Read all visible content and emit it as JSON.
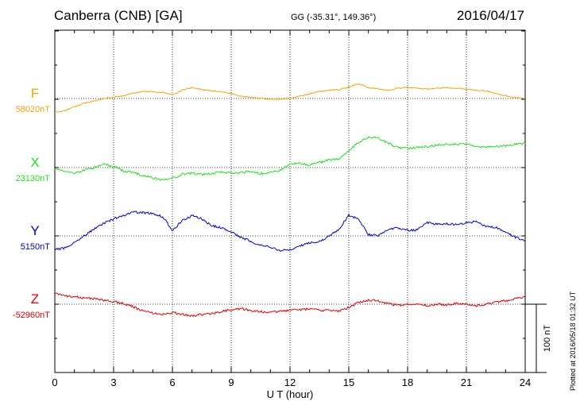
{
  "header": {
    "station": "Canberra (CNB)  [GA]",
    "coords": "GG (-35.31°, 149.36°)",
    "date": "2016/04/17"
  },
  "footnote": "Plotted at 2016/05/18 01:32 UT",
  "colors": {
    "F": "#f4a300",
    "X": "#1ee01e",
    "Y": "#0000cc",
    "Z": "#dd0000"
  },
  "chart_data": {
    "type": "line",
    "xlabel": "U T (hour)",
    "x_ticks": [
      0,
      3,
      6,
      9,
      12,
      15,
      18,
      21,
      24
    ],
    "xlim": [
      0,
      24
    ],
    "scale_bar_label": "100 nT",
    "scale_bar_nT": 100,
    "grid": true,
    "series": [
      {
        "name": "F",
        "baseline_label": "58020nT",
        "baseline_nT": 58020,
        "hours": [
          0,
          0.5,
          1,
          1.5,
          2,
          2.5,
          3,
          3.5,
          4,
          4.5,
          5,
          5.5,
          6,
          6.5,
          7,
          7.5,
          8,
          8.5,
          9,
          9.5,
          10,
          10.5,
          11,
          11.5,
          12,
          12.5,
          13,
          13.5,
          14,
          14.5,
          15,
          15.5,
          16,
          16.5,
          17,
          17.5,
          18,
          18.5,
          19,
          19.5,
          20,
          20.5,
          21,
          21.5,
          22,
          22.5,
          23,
          23.5,
          24
        ],
        "values": [
          -20,
          -18,
          -12,
          -7,
          -4,
          0,
          2,
          4,
          8,
          10,
          10,
          9,
          5,
          12,
          16,
          13,
          11,
          10,
          7,
          3,
          2,
          0,
          -1,
          -1,
          0,
          3,
          7,
          10,
          12,
          13,
          17,
          22,
          16,
          14,
          12,
          15,
          16,
          15,
          14,
          15,
          16,
          15,
          14,
          12,
          11,
          7,
          4,
          1,
          0
        ]
      },
      {
        "name": "X",
        "baseline_label": "23130nT",
        "baseline_nT": 23130,
        "hours": [
          0,
          0.5,
          1,
          1.5,
          2,
          2.5,
          3,
          3.5,
          4,
          4.5,
          5,
          5.5,
          6,
          6.5,
          7,
          7.5,
          8,
          8.5,
          9,
          9.5,
          10,
          10.5,
          11,
          11.5,
          12,
          12.5,
          13,
          13.5,
          14,
          14.5,
          15,
          15.5,
          16,
          16.5,
          17,
          17.5,
          18,
          18.5,
          19,
          19.5,
          20,
          20.5,
          21,
          21.5,
          22,
          22.5,
          23,
          23.5,
          24
        ],
        "values": [
          -1,
          -5,
          -8,
          -4,
          0,
          5,
          2,
          -5,
          -7,
          -12,
          -15,
          -18,
          -16,
          -10,
          -8,
          -10,
          -9,
          -6,
          -8,
          -7,
          -6,
          -9,
          -7,
          -4,
          5,
          6,
          4,
          8,
          11,
          13,
          25,
          37,
          45,
          43,
          36,
          29,
          28,
          29,
          31,
          33,
          34,
          34,
          35,
          31,
          30,
          31,
          32,
          34,
          35
        ]
      },
      {
        "name": "Y",
        "baseline_label": "5150nT",
        "baseline_nT": 5150,
        "hours": [
          0,
          0.5,
          1,
          1.5,
          2,
          2.5,
          3,
          3.5,
          4,
          4.5,
          5,
          5.5,
          6,
          6.5,
          7,
          7.5,
          8,
          8.5,
          9,
          9.5,
          10,
          10.5,
          11,
          11.5,
          12,
          12.5,
          13,
          13.5,
          14,
          14.5,
          15,
          15.5,
          16,
          16.5,
          17,
          17.5,
          18,
          18.5,
          19,
          19.5,
          20,
          20.5,
          21,
          21.5,
          22,
          22.5,
          23,
          23.5,
          24
        ],
        "values": [
          -20,
          -18,
          -10,
          0,
          10,
          18,
          25,
          30,
          35,
          34,
          33,
          28,
          8,
          22,
          30,
          25,
          15,
          12,
          6,
          -2,
          -8,
          -14,
          -16,
          -22,
          -20,
          -15,
          -10,
          -8,
          0,
          10,
          30,
          25,
          2,
          0,
          10,
          12,
          8,
          9,
          20,
          17,
          18,
          16,
          19,
          21,
          13,
          13,
          5,
          -2,
          -8
        ]
      },
      {
        "name": "Z",
        "baseline_label": "-52960nT",
        "baseline_nT": -52960,
        "hours": [
          0,
          0.5,
          1,
          1.5,
          2,
          2.5,
          3,
          3.5,
          4,
          4.5,
          5,
          5.5,
          6,
          6.5,
          7,
          7.5,
          8,
          8.5,
          9,
          9.5,
          10,
          10.5,
          11,
          11.5,
          12,
          12.5,
          13,
          13.5,
          14,
          14.5,
          15,
          15.5,
          16,
          16.5,
          17,
          17.5,
          18,
          18.5,
          19,
          19.5,
          20,
          20.5,
          21,
          21.5,
          22,
          22.5,
          23,
          23.5,
          24
        ],
        "values": [
          17,
          12,
          11,
          9,
          8,
          6,
          4,
          1,
          -4,
          -10,
          -13,
          -15,
          -12,
          -15,
          -17,
          -15,
          -14,
          -11,
          -8,
          -6,
          -10,
          -11,
          -12,
          -10,
          -9,
          -8,
          -7,
          -9,
          -9,
          -10,
          -5,
          3,
          6,
          5,
          1,
          -2,
          -1,
          -1,
          -2,
          0,
          -1,
          1,
          0,
          -2,
          0,
          3,
          5,
          8,
          10
        ]
      }
    ]
  }
}
